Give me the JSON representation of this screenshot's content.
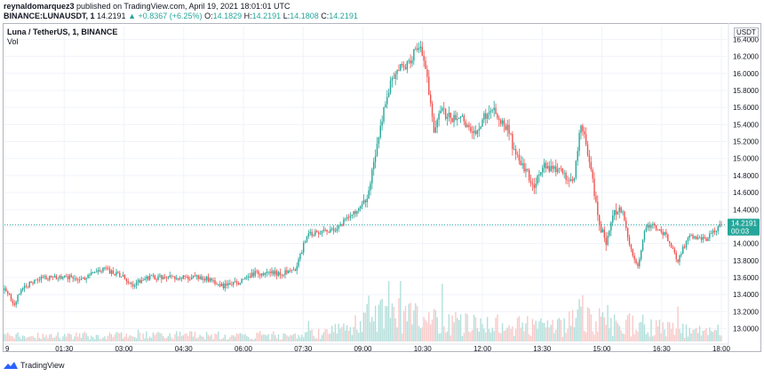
{
  "header": {
    "author": "reynaldomarquez3",
    "published": " published on TradingView.com, April 19, 2021 18:01:01 UTC",
    "symbol": "BINANCE:LUNAUSDT, 1",
    "last": "14.2191",
    "change": "▲ +0.8367 (+6.25%)",
    "o_label": "O:",
    "o_value": "14.1829",
    "h_label": "H:",
    "h_value": "14.2191",
    "l_label": "L:",
    "l_value": "14.1808",
    "c_label": "C:",
    "c_value": "14.2191"
  },
  "pane": {
    "title": "Luna / TetherUS, 1, BINANCE",
    "vol_label": "Vol",
    "currency": "USDT"
  },
  "price_tag": {
    "value": "14.2191",
    "countdown": "00:03"
  },
  "footer": {
    "brand": "TradingView"
  },
  "colors": {
    "up": "#26a69a",
    "down": "#ef5350",
    "vol_up": "#b2dfdb",
    "vol_down": "#f8c9c8",
    "grid": "#f0f3fa"
  },
  "chart_data": {
    "type": "candlestick",
    "title": "Luna / TetherUS, 1, BINANCE",
    "ylim": [
      12.85,
      16.55
    ],
    "y_ticks": [
      "16.4000",
      "16.2000",
      "16.0000",
      "15.8000",
      "15.6000",
      "15.4000",
      "15.2000",
      "15.0000",
      "14.8000",
      "14.6000",
      "14.4000",
      "14.2000",
      "14.0000",
      "13.8000",
      "13.6000",
      "13.4000",
      "13.2000",
      "13.0000"
    ],
    "x_ticks": [
      "9",
      "01:30",
      "03:00",
      "04:30",
      "06:00",
      "07:30",
      "09:00",
      "10:30",
      "12:00",
      "13:30",
      "15:00",
      "16:30",
      "18:00"
    ],
    "x_tick_hours": [
      0.0,
      1.5,
      3.0,
      4.5,
      6.0,
      7.5,
      9.0,
      10.5,
      12.0,
      13.5,
      15.0,
      16.5,
      18.0
    ],
    "last_price": 14.2191,
    "price_path": {
      "hours": [
        0.0,
        0.25,
        0.5,
        1.0,
        1.5,
        2.0,
        2.5,
        3.0,
        3.2,
        3.5,
        4.0,
        4.5,
        5.0,
        5.5,
        5.9,
        6.3,
        6.6,
        7.0,
        7.3,
        7.6,
        8.0,
        8.3,
        8.6,
        8.9,
        9.1,
        9.3,
        9.5,
        9.7,
        9.9,
        10.1,
        10.3,
        10.45,
        10.6,
        10.8,
        10.95,
        11.1,
        11.5,
        11.8,
        12.2,
        12.7,
        12.8,
        13.0,
        13.3,
        13.5,
        13.8,
        14.1,
        14.3,
        14.45,
        14.6,
        14.75,
        14.9,
        15.1,
        15.3,
        15.5,
        15.7,
        15.9,
        16.1,
        16.3,
        16.6,
        16.9,
        17.2,
        17.6,
        18.0
      ],
      "prices": [
        13.45,
        13.3,
        13.5,
        13.6,
        13.6,
        13.6,
        13.7,
        13.6,
        13.5,
        13.6,
        13.6,
        13.6,
        13.6,
        13.5,
        13.55,
        13.65,
        13.65,
        13.65,
        13.7,
        14.1,
        14.15,
        14.15,
        14.3,
        14.4,
        14.5,
        15.0,
        15.5,
        15.9,
        16.05,
        16.1,
        16.25,
        16.3,
        16.0,
        15.3,
        15.6,
        15.5,
        15.45,
        15.3,
        15.6,
        15.3,
        15.05,
        14.9,
        14.7,
        14.9,
        14.9,
        14.8,
        14.7,
        15.4,
        15.2,
        14.8,
        14.3,
        14.0,
        14.35,
        14.4,
        14.0,
        13.7,
        14.2,
        14.2,
        14.1,
        13.8,
        14.1,
        14.05,
        14.22
      ]
    },
    "volume": {
      "ylim": [
        0,
        1
      ],
      "profile_hours": [
        0.0,
        7.5,
        8.5,
        9.0,
        9.5,
        10.0,
        10.5,
        11.5,
        12.5,
        14.0,
        14.5,
        15.0,
        16.0,
        17.0,
        18.0
      ],
      "profile_level": [
        0.12,
        0.14,
        0.25,
        0.55,
        0.7,
        0.55,
        0.45,
        0.4,
        0.35,
        0.3,
        0.6,
        0.4,
        0.35,
        0.25,
        0.15
      ]
    }
  }
}
